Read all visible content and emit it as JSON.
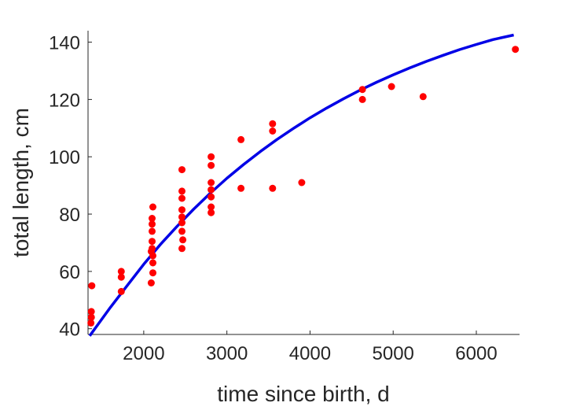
{
  "chart_data": {
    "type": "scatter",
    "xlabel": "time since birth, d",
    "ylabel": "total length, cm",
    "xlim": [
      1330,
      6520
    ],
    "ylim": [
      38,
      144
    ],
    "xticks": [
      2000,
      3000,
      4000,
      5000,
      6000
    ],
    "yticks": [
      40,
      60,
      80,
      100,
      120,
      140
    ],
    "grid": false,
    "legend": "none",
    "colors": {
      "points": "#ff0000",
      "fit": "#0000e6",
      "axis": "#262626"
    },
    "series": [
      {
        "kind": "scatter",
        "points": [
          [
            1375,
            55
          ],
          [
            1370,
            46
          ],
          [
            1370,
            44
          ],
          [
            1365,
            42
          ],
          [
            1730,
            60
          ],
          [
            1730,
            58
          ],
          [
            1730,
            53
          ],
          [
            2090,
            56
          ],
          [
            2090,
            67
          ],
          [
            2100,
            78.5
          ],
          [
            2100,
            76.5
          ],
          [
            2100,
            74
          ],
          [
            2100,
            70.5
          ],
          [
            2100,
            68
          ],
          [
            2110,
            65.5
          ],
          [
            2110,
            63
          ],
          [
            2110,
            59.5
          ],
          [
            2110,
            82.5
          ],
          [
            2460,
            95.5
          ],
          [
            2460,
            88
          ],
          [
            2460,
            85.5
          ],
          [
            2460,
            81.5
          ],
          [
            2460,
            79
          ],
          [
            2460,
            77
          ],
          [
            2460,
            74
          ],
          [
            2470,
            71
          ],
          [
            2460,
            68
          ],
          [
            2810,
            100
          ],
          [
            2810,
            97
          ],
          [
            2810,
            91
          ],
          [
            2810,
            88.5
          ],
          [
            2810,
            86
          ],
          [
            2810,
            82.5
          ],
          [
            2810,
            80.5
          ],
          [
            3170,
            106
          ],
          [
            3170,
            89
          ],
          [
            3550,
            111.5
          ],
          [
            3550,
            109
          ],
          [
            3550,
            89
          ],
          [
            3900,
            91
          ],
          [
            4630,
            123.5
          ],
          [
            4630,
            120
          ],
          [
            4980,
            124.5
          ],
          [
            5360,
            121
          ],
          [
            6470,
            137.5
          ]
        ]
      },
      {
        "kind": "line",
        "points": [
          [
            1350,
            37.5
          ],
          [
            1600,
            47.5
          ],
          [
            1800,
            55
          ],
          [
            2000,
            62.5
          ],
          [
            2200,
            69.4
          ],
          [
            2400,
            75.7
          ],
          [
            2600,
            81.7
          ],
          [
            2800,
            87.3
          ],
          [
            3000,
            92.5
          ],
          [
            3200,
            97.3
          ],
          [
            3400,
            101.8
          ],
          [
            3600,
            106
          ],
          [
            3800,
            109.9
          ],
          [
            4000,
            113.6
          ],
          [
            4200,
            117
          ],
          [
            4400,
            120.2
          ],
          [
            4600,
            123.2
          ],
          [
            4800,
            126
          ],
          [
            5000,
            128.6
          ],
          [
            5200,
            131
          ],
          [
            5400,
            133.3
          ],
          [
            5600,
            135.4
          ],
          [
            5800,
            137.4
          ],
          [
            6000,
            139.2
          ],
          [
            6200,
            140.9
          ],
          [
            6450,
            142.5
          ]
        ]
      }
    ]
  }
}
